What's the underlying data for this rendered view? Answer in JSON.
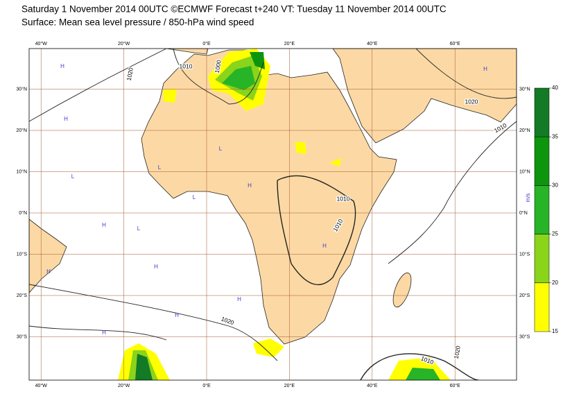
{
  "header": {
    "title": "Saturday 1 November 2014 00UTC ©ECMWF Forecast t+240 VT: Tuesday 11 November 2014 00UTC",
    "subtitle": "Surface: Mean sea level pressure / 850-hPa wind speed"
  },
  "map": {
    "longitudes": [
      {
        "value": -40,
        "label": "40°W"
      },
      {
        "value": -20,
        "label": "20°W"
      },
      {
        "value": 0,
        "label": "0°E"
      },
      {
        "value": 20,
        "label": "20°E"
      },
      {
        "value": 40,
        "label": "40°E"
      },
      {
        "value": 60,
        "label": "60°E"
      }
    ],
    "latitudes": [
      {
        "value": 30,
        "label": "30°N"
      },
      {
        "value": 20,
        "label": "20°N"
      },
      {
        "value": 10,
        "label": "10°N"
      },
      {
        "value": 0,
        "label": "0°N"
      },
      {
        "value": -10,
        "label": "10°S"
      },
      {
        "value": -20,
        "label": "20°S"
      },
      {
        "value": -30,
        "label": "30°S"
      }
    ],
    "contour_labels": [
      "1020",
      "1010",
      "1000",
      "1020",
      "1010",
      "1010",
      "1010",
      "1020",
      "1010",
      "1020"
    ],
    "pressure_centers": [
      "H",
      "L",
      "H",
      "L",
      "L",
      "H",
      "H",
      "L",
      "H",
      "H",
      "L",
      "L",
      "H",
      "H",
      "H",
      "L",
      "H",
      "H"
    ]
  },
  "colorbar": {
    "unit": "m/s",
    "ticks": [
      15,
      20,
      25,
      30,
      35,
      40
    ],
    "colors": [
      "#ffff00",
      "#8ad41a",
      "#27b427",
      "#0d960d",
      "#137a25"
    ]
  }
}
